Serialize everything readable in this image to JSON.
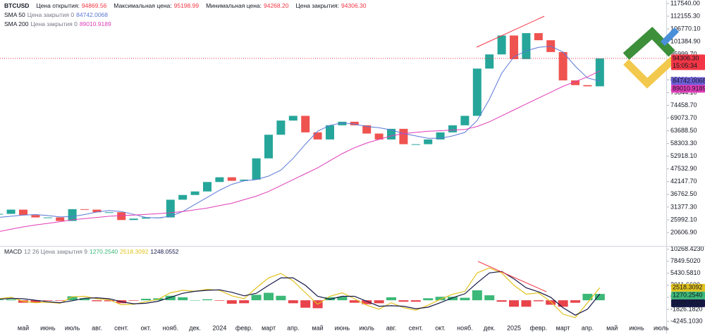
{
  "chart_data": [
    {
      "type": "candlestick",
      "title": "BTCUSD",
      "ohlc": [
        {
          "name": "Цена открытия:",
          "value": "94869.56"
        },
        {
          "name": "Максимальная цена:",
          "value": "95198.99"
        },
        {
          "name": "Минимальная цена:",
          "value": "94268.20"
        },
        {
          "name": "Цена закрытия:",
          "value": "94306.30"
        }
      ],
      "countdown": "15:05:34",
      "values": [
        28500,
        30300,
        28000,
        27000,
        27000,
        25500,
        30500,
        30300,
        29200,
        29200,
        25900,
        26500,
        27000,
        27000,
        34500,
        36500,
        38000,
        42000,
        44000,
        42500,
        43000,
        52000,
        62000,
        68000,
        70000,
        63000,
        60000,
        66000,
        67500,
        66000,
        62500,
        60000,
        64500,
        58000,
        58000,
        60000,
        63000,
        66000,
        70000,
        90000,
        96000,
        104000,
        94000,
        105000,
        102000,
        97000,
        85000,
        83000,
        82500,
        94306.3,
        null,
        null,
        null,
        null,
        null
      ],
      "up_color": "#26a69a",
      "down_color": "#ef5350",
      "last_color": "#f23645",
      "series": [
        {
          "name": "SMA 50",
          "params": "Цена закрытия 0",
          "color": "#5b78d6",
          "label_color": "#6e5fd8",
          "values": [
            27000,
            27500,
            28000,
            28200,
            27800,
            27200,
            27400,
            28200,
            29300,
            29900,
            29500,
            28300,
            27000,
            26800,
            27500,
            29500,
            32500,
            35500,
            38500,
            41000,
            42500,
            43000,
            44500,
            47000,
            52000,
            58000,
            63500,
            66000,
            67000,
            66500,
            65500,
            65000,
            64000,
            62500,
            61500,
            60500,
            60500,
            61500,
            63000,
            68000,
            77000,
            88000,
            95000,
            97500,
            99000,
            99500,
            97000,
            91000,
            86000,
            84742.0068,
            null,
            null,
            null,
            null,
            null
          ]
        },
        {
          "name": "SMA 200",
          "params": "Цена закрытия 0",
          "color": "#e03cb8",
          "label_color": "#e03cb8",
          "values": [
            21000,
            22000,
            23000,
            23800,
            24500,
            25200,
            26000,
            26500,
            27000,
            27500,
            27800,
            28000,
            28300,
            28600,
            29000,
            29500,
            30200,
            31000,
            32000,
            33000,
            34500,
            36000,
            38000,
            40500,
            43000,
            45500,
            48000,
            51000,
            54000,
            56500,
            58500,
            60000,
            61500,
            62500,
            63000,
            63500,
            63700,
            64000,
            64200,
            65500,
            67500,
            70000,
            72500,
            75000,
            77500,
            80000,
            82500,
            84500,
            86500,
            89010.9189,
            null,
            null,
            null,
            null,
            null
          ]
        }
      ],
      "ylim": [
        15240,
        119030
      ],
      "yticks": [
        {
          "value": 117540,
          "label": "117540.00"
        },
        {
          "value": 112155.3,
          "label": "112155.30"
        },
        {
          "value": 106770.1,
          "label": "106770.10"
        },
        {
          "value": 101384.9,
          "label": "101384.90"
        },
        {
          "value": 95999.7,
          "label": "95999.70"
        },
        {
          "value": 90614.5,
          "label": "90614.50"
        },
        {
          "value": 85229.3,
          "label": "85229.30"
        },
        {
          "value": 79844.1,
          "label": "79844.10"
        },
        {
          "value": 74458.7,
          "label": "74458.70"
        },
        {
          "value": 69073.7,
          "label": "69073.70"
        },
        {
          "value": 63688.5,
          "label": "63688.50"
        },
        {
          "value": 58303.3,
          "label": "58303.30"
        },
        {
          "value": 52918.1,
          "label": "52918.10"
        },
        {
          "value": 47532.9,
          "label": "47532.90"
        },
        {
          "value": 42147.7,
          "label": "42147.70"
        },
        {
          "value": 36762.5,
          "label": "36762.50"
        },
        {
          "value": 31377.3,
          "label": "31377.30"
        },
        {
          "value": 25992.1,
          "label": "25992.10"
        },
        {
          "value": 20606.9,
          "label": "20606.90"
        }
      ],
      "grid": false
    },
    {
      "type": "macd",
      "name": "MACD",
      "params": "12 26 Цена закрытия 9",
      "categories": [
        null,
        null,
        "май",
        null,
        "июнь",
        null,
        "июль",
        null,
        "авг.",
        null,
        "сент.",
        null,
        "окт.",
        null,
        "нояб.",
        null,
        "дек.",
        null,
        "2024",
        null,
        "февр.",
        null,
        "март",
        null,
        "апр.",
        null,
        "май",
        null,
        "июнь",
        null,
        "июль",
        null,
        "авг.",
        null,
        "сент.",
        null,
        "окт.",
        null,
        "нояб.",
        null,
        "дек.",
        null,
        "2025",
        null,
        "февр.",
        null,
        "март",
        null,
        "апр.",
        null,
        "май",
        null,
        "июнь",
        null,
        "июль"
      ],
      "histogram": {
        "positive_color": "#3cb878",
        "negative_color": "#e8434b",
        "last_value_label": "1270.2540",
        "values": [
          100,
          200,
          -500,
          -500,
          -100,
          -100,
          800,
          400,
          -200,
          -200,
          -600,
          -100,
          300,
          400,
          900,
          600,
          0,
          200,
          -100,
          -700,
          -600,
          1100,
          1500,
          900,
          -600,
          -1500,
          -1600,
          600,
          700,
          -500,
          -800,
          -600,
          600,
          -300,
          -300,
          400,
          700,
          700,
          500,
          2000,
          1000,
          -300,
          -1300,
          -1300,
          -200,
          -900,
          -1300,
          -500,
          1300,
          1270.254,
          null,
          null,
          null,
          null,
          null
        ]
      },
      "series": [
        {
          "color": "#e2c21e",
          "values": [
            300,
            600,
            -200,
            -500,
            -400,
            -600,
            700,
            800,
            300,
            100,
            -900,
            -800,
            -300,
            200,
            1500,
            2000,
            1800,
            2200,
            2000,
            900,
            300,
            2500,
            4500,
            5400,
            3900,
            1500,
            -800,
            800,
            1500,
            300,
            -1000,
            -1800,
            -500,
            -1500,
            -2000,
            -1000,
            200,
            1200,
            1800,
            5500,
            6500,
            5500,
            3000,
            1200,
            1500,
            -300,
            -2800,
            -3500,
            -500,
            2518.3092,
            null,
            null,
            null,
            null,
            null
          ]
        },
        {
          "color": "#151846",
          "values": [
            200,
            400,
            300,
            0,
            -300,
            -500,
            -100,
            400,
            500,
            300,
            -300,
            -700,
            -600,
            -200,
            600,
            1400,
            1800,
            2000,
            2100,
            1600,
            900,
            1400,
            3000,
            4500,
            4500,
            3000,
            800,
            200,
            800,
            800,
            -200,
            -1200,
            -1100,
            -1200,
            -1700,
            -1400,
            -500,
            500,
            1300,
            3500,
            5500,
            5800,
            4300,
            2500,
            1700,
            600,
            -1500,
            -3000,
            -1800,
            1248.0552,
            null,
            null,
            null,
            null,
            null
          ]
        }
      ],
      "ylim": [
        -4800,
        10500
      ],
      "yticks": [
        {
          "value": 10268.423,
          "label": "10268.4230"
        },
        {
          "value": 7849.502,
          "label": "7849.5020"
        },
        {
          "value": 5430.581,
          "label": "5430.5810"
        },
        {
          "value": 3011.66,
          "label": "3011.6600"
        },
        {
          "value": 592.739,
          "label": "592.7390"
        },
        {
          "value": -1826.182,
          "label": "-1826.1820"
        },
        {
          "value": -4245.103,
          "label": "-4245.1030"
        }
      ],
      "grid": false
    }
  ]
}
